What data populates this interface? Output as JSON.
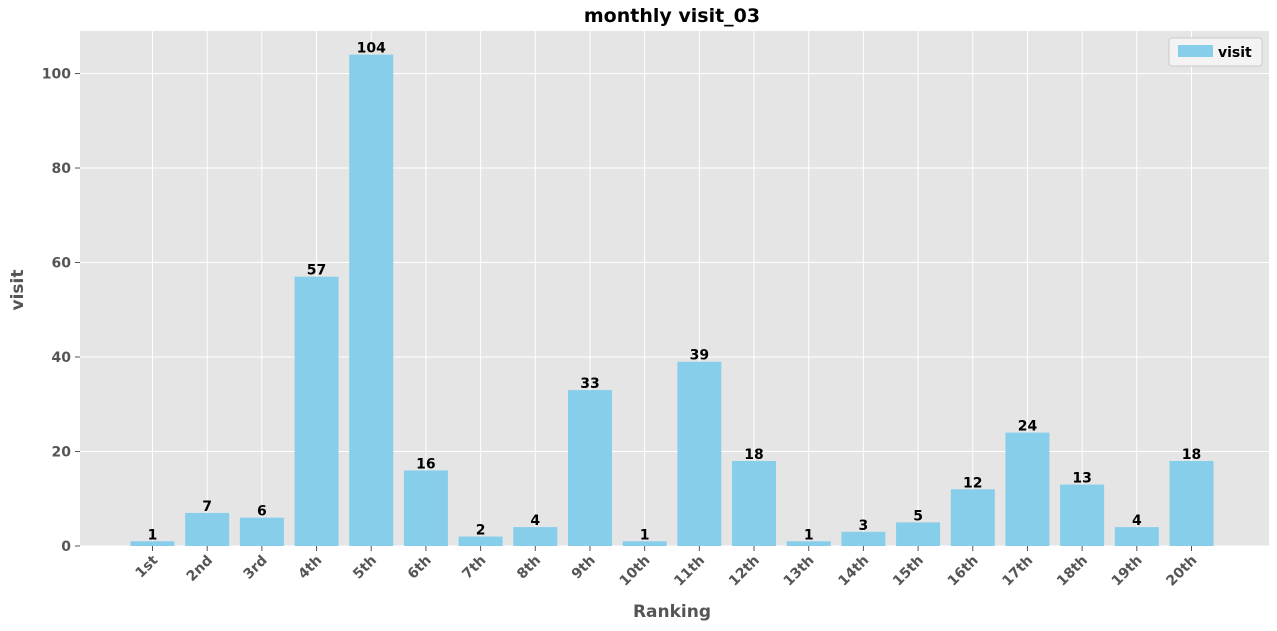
{
  "chart_data": {
    "type": "bar",
    "title": "monthly visit_03",
    "xlabel": "Ranking",
    "ylabel": "visit",
    "ylim": [
      0,
      109
    ],
    "yticks": [
      "0",
      "20",
      "40",
      "60",
      "80",
      "100"
    ],
    "grid": true,
    "legend_position": "top-right",
    "categories": [
      "1st",
      "2nd",
      "3rd",
      "4th",
      "5th",
      "6th",
      "7th",
      "8th",
      "9th",
      "10th",
      "11th",
      "12th",
      "13th",
      "14th",
      "15th",
      "16th",
      "17th",
      "18th",
      "19th",
      "20th"
    ],
    "series": [
      {
        "name": "visit",
        "color": "#87CEEB",
        "values": [
          1,
          7,
          6,
          57,
          104,
          16,
          2,
          4,
          33,
          1,
          39,
          18,
          1,
          3,
          5,
          12,
          24,
          13,
          4,
          18
        ]
      }
    ]
  },
  "colors": {
    "plot_background": "#E5E5E5",
    "grid": "#FFFFFF",
    "bar": "#87CEEB"
  }
}
